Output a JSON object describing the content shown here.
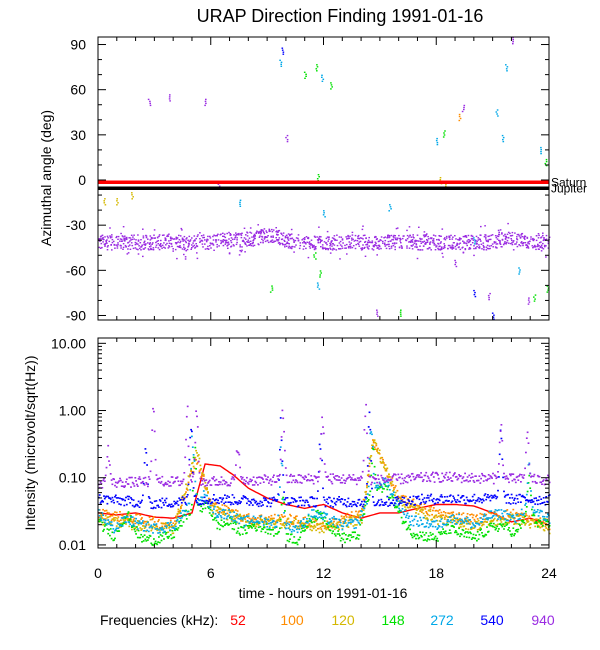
{
  "title": "URAP Direction Finding  1991-01-16",
  "freq_legend_label": "Frequencies (kHz):",
  "chart_data": [
    {
      "type": "scatter",
      "panel": "azimuth",
      "ylabel": "Azimuthal angle (deg)",
      "xlim": [
        0,
        24
      ],
      "ylim": [
        -93,
        95
      ],
      "x_ticks": [
        0,
        6,
        12,
        18,
        24
      ],
      "y_ticks": [
        -90,
        -60,
        -30,
        0,
        30,
        60,
        90
      ],
      "y_tick_labels": [
        "-90",
        "-60",
        "-30",
        "0",
        "30",
        "60",
        "90"
      ],
      "reference_lines": [
        {
          "name": "Saturn",
          "y": -1.5,
          "color": "#ff0000"
        },
        {
          "name": "Jupiter",
          "y": -5.5,
          "color": "#000000"
        }
      ],
      "bands": [
        {
          "freq": "940",
          "center": -41,
          "spread": 10,
          "density": 0.9
        }
      ],
      "band_bumps": [
        {
          "x": 7,
          "center": -39
        },
        {
          "x": 9,
          "center": -36
        },
        {
          "x": 22,
          "center": -39
        }
      ],
      "outliers": [
        {
          "freq": "120",
          "x": 0.3,
          "y": -14
        },
        {
          "freq": "120",
          "x": 1.0,
          "y": -14
        },
        {
          "freq": "120",
          "x": 1.8,
          "y": -10
        },
        {
          "freq": "940",
          "x": 2.7,
          "y": 52
        },
        {
          "freq": "940",
          "x": 3.8,
          "y": 55
        },
        {
          "freq": "940",
          "x": 5.7,
          "y": 52
        },
        {
          "freq": "940",
          "x": 6.4,
          "y": -3
        },
        {
          "freq": "272",
          "x": 7.5,
          "y": -15
        },
        {
          "freq": "148",
          "x": 9.2,
          "y": -72
        },
        {
          "freq": "540",
          "x": 9.8,
          "y": 86
        },
        {
          "freq": "272",
          "x": 9.7,
          "y": 78
        },
        {
          "freq": "940",
          "x": 10.0,
          "y": 28
        },
        {
          "freq": "148",
          "x": 11.0,
          "y": 70
        },
        {
          "freq": "148",
          "x": 11.5,
          "y": -50
        },
        {
          "freq": "148",
          "x": 11.6,
          "y": 75
        },
        {
          "freq": "148",
          "x": 11.7,
          "y": 2
        },
        {
          "freq": "272",
          "x": 11.9,
          "y": 68
        },
        {
          "freq": "148",
          "x": 11.8,
          "y": -62
        },
        {
          "freq": "272",
          "x": 11.7,
          "y": -70
        },
        {
          "freq": "272",
          "x": 12.0,
          "y": -22
        },
        {
          "freq": "148",
          "x": 12.4,
          "y": 63
        },
        {
          "freq": "940",
          "x": 14.8,
          "y": -88
        },
        {
          "freq": "272",
          "x": 15.5,
          "y": -18
        },
        {
          "freq": "148",
          "x": 16.1,
          "y": -88
        },
        {
          "freq": "272",
          "x": 18.0,
          "y": 26
        },
        {
          "freq": "120",
          "x": 18.2,
          "y": 0
        },
        {
          "freq": "148",
          "x": 18.4,
          "y": 31
        },
        {
          "freq": "120",
          "x": 18.5,
          "y": -3
        },
        {
          "freq": "940",
          "x": 19.0,
          "y": -55
        },
        {
          "freq": "100",
          "x": 19.2,
          "y": 42
        },
        {
          "freq": "940",
          "x": 19.4,
          "y": 48
        },
        {
          "freq": "272",
          "x": 20.0,
          "y": -40
        },
        {
          "freq": "540",
          "x": 20.0,
          "y": -75
        },
        {
          "freq": "940",
          "x": 20.8,
          "y": -77
        },
        {
          "freq": "272",
          "x": 21.2,
          "y": 45
        },
        {
          "freq": "272",
          "x": 21.5,
          "y": 28
        },
        {
          "freq": "540",
          "x": 21.0,
          "y": -90
        },
        {
          "freq": "940",
          "x": 21.3,
          "y": -35
        },
        {
          "freq": "272",
          "x": 21.7,
          "y": 75
        },
        {
          "freq": "940",
          "x": 22.0,
          "y": 93
        },
        {
          "freq": "272",
          "x": 22.4,
          "y": -60
        },
        {
          "freq": "940",
          "x": 22.9,
          "y": -80
        },
        {
          "freq": "148",
          "x": 23.2,
          "y": -78
        },
        {
          "freq": "272",
          "x": 23.5,
          "y": 20
        },
        {
          "freq": "148",
          "x": 23.8,
          "y": 12
        },
        {
          "freq": "148",
          "x": 23.9,
          "y": -72
        }
      ]
    },
    {
      "type": "scatter",
      "panel": "intensity",
      "ylabel": "Intensity (microvolt/sqrt(Hz))",
      "xlabel": "time - hours on 1991-01-16",
      "xlim": [
        0,
        24
      ],
      "ylim": [
        0.009,
        12
      ],
      "yscale": "log",
      "x_ticks": [
        0,
        6,
        12,
        18,
        24
      ],
      "x_tick_labels": [
        "0",
        "6",
        "12",
        "18",
        "24"
      ],
      "y_ticks": [
        0.01,
        0.1,
        1.0,
        10.0
      ],
      "y_tick_labels": [
        "0.01",
        "0.10",
        "1.00",
        "10.00"
      ],
      "series": [
        {
          "name": "52",
          "color": "#ff0000",
          "style": "line",
          "points": [
            [
              0,
              0.03
            ],
            [
              1,
              0.028
            ],
            [
              2,
              0.03
            ],
            [
              3,
              0.026
            ],
            [
              4,
              0.025
            ],
            [
              5,
              0.03
            ],
            [
              5.7,
              0.16
            ],
            [
              6.5,
              0.15
            ],
            [
              7.2,
              0.11
            ],
            [
              8,
              0.07
            ],
            [
              9,
              0.05
            ],
            [
              10,
              0.04
            ],
            [
              11,
              0.035
            ],
            [
              12,
              0.04
            ],
            [
              13,
              0.03
            ],
            [
              14,
              0.025
            ],
            [
              15,
              0.03
            ],
            [
              16,
              0.03
            ],
            [
              17,
              0.035
            ],
            [
              18,
              0.04
            ],
            [
              19,
              0.04
            ],
            [
              20,
              0.038
            ],
            [
              21,
              0.03
            ],
            [
              22,
              0.022
            ],
            [
              23,
              0.025
            ],
            [
              24,
              0.02
            ]
          ]
        },
        {
          "name": "100",
          "color": "#ff8c00",
          "style": "dots",
          "points": [
            [
              0,
              0.03
            ],
            [
              2,
              0.025
            ],
            [
              4,
              0.02
            ],
            [
              5.2,
              0.2
            ],
            [
              6,
              0.04
            ],
            [
              8,
              0.025
            ],
            [
              10,
              0.025
            ],
            [
              12,
              0.02
            ],
            [
              14,
              0.03
            ],
            [
              14.6,
              0.35
            ],
            [
              16,
              0.05
            ],
            [
              18,
              0.03
            ],
            [
              20,
              0.025
            ],
            [
              22,
              0.03
            ],
            [
              24,
              0.02
            ]
          ]
        },
        {
          "name": "120",
          "color": "#d4b800",
          "style": "dots",
          "points": [
            [
              0,
              0.025
            ],
            [
              2,
              0.02
            ],
            [
              4,
              0.018
            ],
            [
              5.2,
              0.25
            ],
            [
              6,
              0.035
            ],
            [
              8,
              0.022
            ],
            [
              10,
              0.022
            ],
            [
              12,
              0.018
            ],
            [
              14,
              0.025
            ],
            [
              14.6,
              0.38
            ],
            [
              16,
              0.045
            ],
            [
              18,
              0.025
            ],
            [
              20,
              0.02
            ],
            [
              22,
              0.025
            ],
            [
              24,
              0.018
            ]
          ]
        },
        {
          "name": "148",
          "color": "#00e000",
          "style": "dots",
          "base": [
            [
              0,
              0.022
            ],
            [
              0.8,
              0.014
            ],
            [
              1.5,
              0.03
            ],
            [
              2.2,
              0.013
            ],
            [
              3,
              0.012
            ],
            [
              4,
              0.015
            ],
            [
              4.7,
              0.03
            ],
            [
              5.8,
              0.04
            ],
            [
              6.3,
              0.02
            ],
            [
              7,
              0.022
            ],
            [
              7.6,
              0.016
            ],
            [
              8.2,
              0.02
            ],
            [
              9,
              0.018
            ],
            [
              10,
              0.014
            ],
            [
              10.6,
              0.012
            ],
            [
              11.2,
              0.025
            ],
            [
              11.9,
              0.03
            ],
            [
              12.4,
              0.018
            ],
            [
              13,
              0.013
            ],
            [
              13.8,
              0.014
            ],
            [
              14.3,
              0.05
            ],
            [
              15.2,
              0.08
            ],
            [
              16,
              0.03
            ],
            [
              16.6,
              0.016
            ],
            [
              17.3,
              0.014
            ],
            [
              18,
              0.013
            ],
            [
              18.6,
              0.018
            ],
            [
              19.3,
              0.015
            ],
            [
              20,
              0.013
            ],
            [
              20.8,
              0.018
            ],
            [
              21.5,
              0.02
            ],
            [
              22.2,
              0.015
            ],
            [
              22.8,
              0.03
            ],
            [
              23.4,
              0.022
            ],
            [
              24,
              0.02
            ]
          ],
          "peaks": [
            [
              5.1,
              0.4
            ],
            [
              14.6,
              0.4
            ],
            [
              9.8,
              0.1
            ],
            [
              22.9,
              0.15
            ]
          ]
        },
        {
          "name": "272",
          "color": "#00a8e8",
          "style": "dots",
          "base": [
            [
              0,
              0.03
            ],
            [
              0.8,
              0.018
            ],
            [
              1.5,
              0.025
            ],
            [
              2.2,
              0.02
            ],
            [
              3,
              0.018
            ],
            [
              4,
              0.02
            ],
            [
              4.7,
              0.035
            ],
            [
              5.5,
              0.06
            ],
            [
              6.3,
              0.03
            ],
            [
              7,
              0.03
            ],
            [
              7.6,
              0.022
            ],
            [
              8.3,
              0.025
            ],
            [
              9,
              0.022
            ],
            [
              10,
              0.02
            ],
            [
              10.6,
              0.018
            ],
            [
              11.4,
              0.03
            ],
            [
              12.2,
              0.025
            ],
            [
              13,
              0.02
            ],
            [
              13.8,
              0.022
            ],
            [
              14.4,
              0.06
            ],
            [
              15.2,
              0.09
            ],
            [
              16,
              0.04
            ],
            [
              16.6,
              0.024
            ],
            [
              17.3,
              0.022
            ],
            [
              18,
              0.02
            ],
            [
              18.6,
              0.025
            ],
            [
              19.3,
              0.025
            ],
            [
              20,
              0.02
            ],
            [
              20.8,
              0.028
            ],
            [
              21.5,
              0.03
            ],
            [
              22.2,
              0.024
            ],
            [
              22.8,
              0.04
            ],
            [
              23.4,
              0.03
            ],
            [
              24,
              0.025
            ]
          ],
          "peaks": [
            [
              5.0,
              0.9
            ],
            [
              14.5,
              1.1
            ],
            [
              9.7,
              0.5
            ],
            [
              22.9,
              0.2
            ]
          ]
        },
        {
          "name": "540",
          "color": "#0000ff",
          "style": "dots",
          "base": [
            [
              0,
              0.05
            ],
            [
              3,
              0.042
            ],
            [
              6,
              0.05
            ],
            [
              9,
              0.045
            ],
            [
              12,
              0.045
            ],
            [
              15,
              0.045
            ],
            [
              18,
              0.05
            ],
            [
              21,
              0.05
            ],
            [
              24,
              0.048
            ]
          ],
          "peaks": [
            [
              2.5,
              0.4
            ],
            [
              4.9,
              1.4
            ],
            [
              9.7,
              1.2
            ],
            [
              11.8,
              0.7
            ],
            [
              14.4,
              1.0
            ],
            [
              21.4,
              0.6
            ]
          ]
        },
        {
          "name": "940",
          "color": "#9a2be2",
          "style": "dots",
          "base": [
            [
              0,
              0.085
            ],
            [
              3,
              0.09
            ],
            [
              6,
              0.09
            ],
            [
              9,
              0.095
            ],
            [
              12,
              0.1
            ],
            [
              15,
              0.095
            ],
            [
              18,
              0.105
            ],
            [
              21,
              0.1
            ],
            [
              24,
              0.095
            ]
          ],
          "peaks": [
            [
              0.5,
              0.35
            ],
            [
              2.9,
              1.4
            ],
            [
              4.7,
              1.5
            ],
            [
              5.2,
              1.8
            ],
            [
              7.4,
              0.5
            ],
            [
              9.8,
              1.5
            ],
            [
              11.9,
              1.1
            ],
            [
              14.2,
              1.7
            ],
            [
              21.4,
              0.8
            ],
            [
              22.8,
              0.6
            ]
          ]
        }
      ]
    }
  ]
}
